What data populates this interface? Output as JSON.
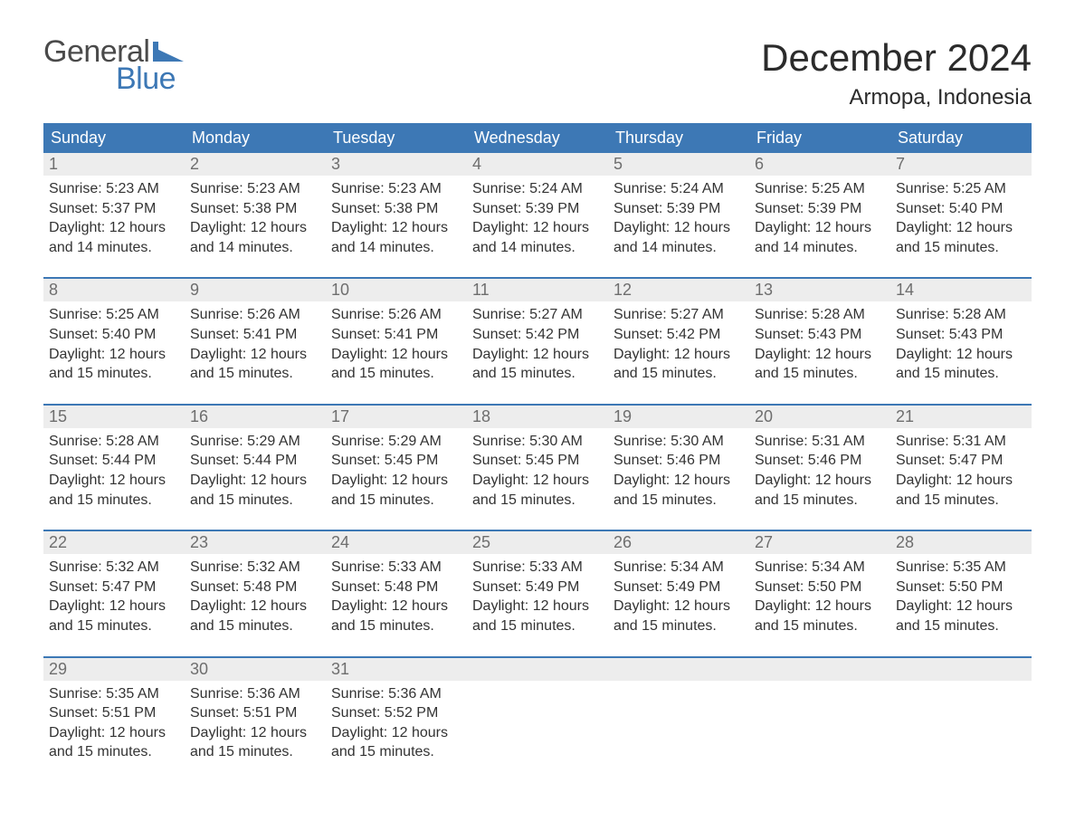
{
  "colors": {
    "header_bg": "#3d78b5",
    "header_text": "#ffffff",
    "daynum_bg": "#ededed",
    "daynum_text": "#6e6e6e",
    "body_text": "#333333",
    "week_rule": "#3d78b5",
    "logo_text": "#3d78b5",
    "logo_general": "#4a4a4a",
    "title_text": "#2b2b2b",
    "bg": "#ffffff"
  },
  "logo": {
    "line1": "General",
    "line2": "Blue"
  },
  "title": "December 2024",
  "location": "Armopa, Indonesia",
  "weekdays": [
    "Sunday",
    "Monday",
    "Tuesday",
    "Wednesday",
    "Thursday",
    "Friday",
    "Saturday"
  ],
  "weeks": [
    [
      {
        "day": "1",
        "sunrise": "Sunrise: 5:23 AM",
        "sunset": "Sunset: 5:37 PM",
        "daylight": "Daylight: 12 hours and 14 minutes."
      },
      {
        "day": "2",
        "sunrise": "Sunrise: 5:23 AM",
        "sunset": "Sunset: 5:38 PM",
        "daylight": "Daylight: 12 hours and 14 minutes."
      },
      {
        "day": "3",
        "sunrise": "Sunrise: 5:23 AM",
        "sunset": "Sunset: 5:38 PM",
        "daylight": "Daylight: 12 hours and 14 minutes."
      },
      {
        "day": "4",
        "sunrise": "Sunrise: 5:24 AM",
        "sunset": "Sunset: 5:39 PM",
        "daylight": "Daylight: 12 hours and 14 minutes."
      },
      {
        "day": "5",
        "sunrise": "Sunrise: 5:24 AM",
        "sunset": "Sunset: 5:39 PM",
        "daylight": "Daylight: 12 hours and 14 minutes."
      },
      {
        "day": "6",
        "sunrise": "Sunrise: 5:25 AM",
        "sunset": "Sunset: 5:39 PM",
        "daylight": "Daylight: 12 hours and 14 minutes."
      },
      {
        "day": "7",
        "sunrise": "Sunrise: 5:25 AM",
        "sunset": "Sunset: 5:40 PM",
        "daylight": "Daylight: 12 hours and 15 minutes."
      }
    ],
    [
      {
        "day": "8",
        "sunrise": "Sunrise: 5:25 AM",
        "sunset": "Sunset: 5:40 PM",
        "daylight": "Daylight: 12 hours and 15 minutes."
      },
      {
        "day": "9",
        "sunrise": "Sunrise: 5:26 AM",
        "sunset": "Sunset: 5:41 PM",
        "daylight": "Daylight: 12 hours and 15 minutes."
      },
      {
        "day": "10",
        "sunrise": "Sunrise: 5:26 AM",
        "sunset": "Sunset: 5:41 PM",
        "daylight": "Daylight: 12 hours and 15 minutes."
      },
      {
        "day": "11",
        "sunrise": "Sunrise: 5:27 AM",
        "sunset": "Sunset: 5:42 PM",
        "daylight": "Daylight: 12 hours and 15 minutes."
      },
      {
        "day": "12",
        "sunrise": "Sunrise: 5:27 AM",
        "sunset": "Sunset: 5:42 PM",
        "daylight": "Daylight: 12 hours and 15 minutes."
      },
      {
        "day": "13",
        "sunrise": "Sunrise: 5:28 AM",
        "sunset": "Sunset: 5:43 PM",
        "daylight": "Daylight: 12 hours and 15 minutes."
      },
      {
        "day": "14",
        "sunrise": "Sunrise: 5:28 AM",
        "sunset": "Sunset: 5:43 PM",
        "daylight": "Daylight: 12 hours and 15 minutes."
      }
    ],
    [
      {
        "day": "15",
        "sunrise": "Sunrise: 5:28 AM",
        "sunset": "Sunset: 5:44 PM",
        "daylight": "Daylight: 12 hours and 15 minutes."
      },
      {
        "day": "16",
        "sunrise": "Sunrise: 5:29 AM",
        "sunset": "Sunset: 5:44 PM",
        "daylight": "Daylight: 12 hours and 15 minutes."
      },
      {
        "day": "17",
        "sunrise": "Sunrise: 5:29 AM",
        "sunset": "Sunset: 5:45 PM",
        "daylight": "Daylight: 12 hours and 15 minutes."
      },
      {
        "day": "18",
        "sunrise": "Sunrise: 5:30 AM",
        "sunset": "Sunset: 5:45 PM",
        "daylight": "Daylight: 12 hours and 15 minutes."
      },
      {
        "day": "19",
        "sunrise": "Sunrise: 5:30 AM",
        "sunset": "Sunset: 5:46 PM",
        "daylight": "Daylight: 12 hours and 15 minutes."
      },
      {
        "day": "20",
        "sunrise": "Sunrise: 5:31 AM",
        "sunset": "Sunset: 5:46 PM",
        "daylight": "Daylight: 12 hours and 15 minutes."
      },
      {
        "day": "21",
        "sunrise": "Sunrise: 5:31 AM",
        "sunset": "Sunset: 5:47 PM",
        "daylight": "Daylight: 12 hours and 15 minutes."
      }
    ],
    [
      {
        "day": "22",
        "sunrise": "Sunrise: 5:32 AM",
        "sunset": "Sunset: 5:47 PM",
        "daylight": "Daylight: 12 hours and 15 minutes."
      },
      {
        "day": "23",
        "sunrise": "Sunrise: 5:32 AM",
        "sunset": "Sunset: 5:48 PM",
        "daylight": "Daylight: 12 hours and 15 minutes."
      },
      {
        "day": "24",
        "sunrise": "Sunrise: 5:33 AM",
        "sunset": "Sunset: 5:48 PM",
        "daylight": "Daylight: 12 hours and 15 minutes."
      },
      {
        "day": "25",
        "sunrise": "Sunrise: 5:33 AM",
        "sunset": "Sunset: 5:49 PM",
        "daylight": "Daylight: 12 hours and 15 minutes."
      },
      {
        "day": "26",
        "sunrise": "Sunrise: 5:34 AM",
        "sunset": "Sunset: 5:49 PM",
        "daylight": "Daylight: 12 hours and 15 minutes."
      },
      {
        "day": "27",
        "sunrise": "Sunrise: 5:34 AM",
        "sunset": "Sunset: 5:50 PM",
        "daylight": "Daylight: 12 hours and 15 minutes."
      },
      {
        "day": "28",
        "sunrise": "Sunrise: 5:35 AM",
        "sunset": "Sunset: 5:50 PM",
        "daylight": "Daylight: 12 hours and 15 minutes."
      }
    ],
    [
      {
        "day": "29",
        "sunrise": "Sunrise: 5:35 AM",
        "sunset": "Sunset: 5:51 PM",
        "daylight": "Daylight: 12 hours and 15 minutes."
      },
      {
        "day": "30",
        "sunrise": "Sunrise: 5:36 AM",
        "sunset": "Sunset: 5:51 PM",
        "daylight": "Daylight: 12 hours and 15 minutes."
      },
      {
        "day": "31",
        "sunrise": "Sunrise: 5:36 AM",
        "sunset": "Sunset: 5:52 PM",
        "daylight": "Daylight: 12 hours and 15 minutes."
      },
      null,
      null,
      null,
      null
    ]
  ]
}
